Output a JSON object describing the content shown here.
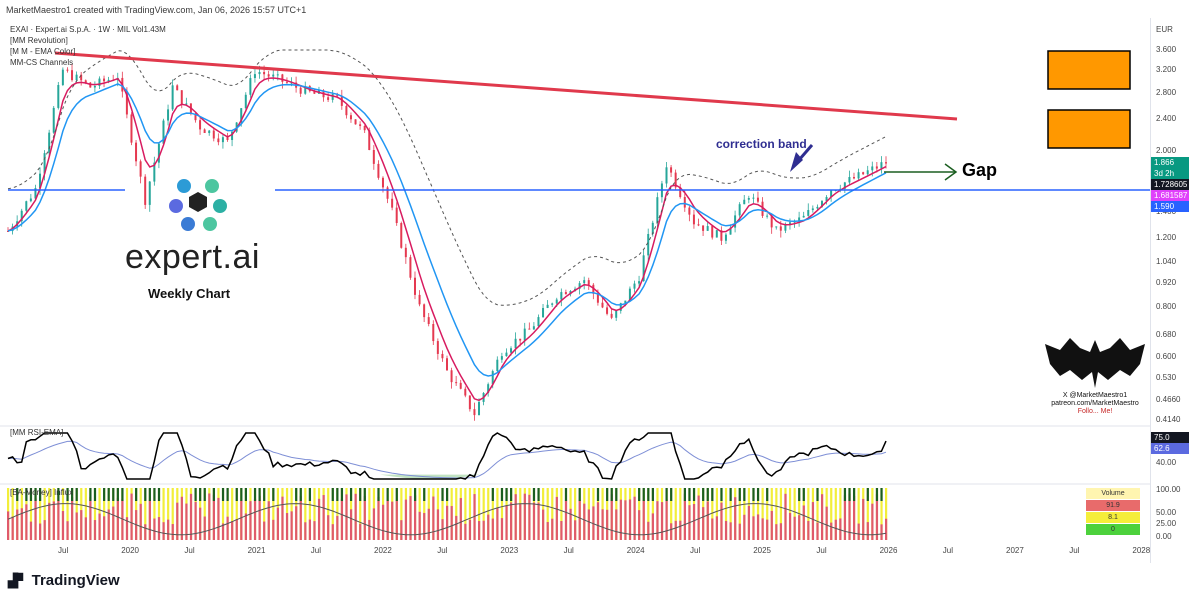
{
  "header": "MarketMaestro1 created with TradingView.com, Jan 06, 2026 15:57 UTC+1",
  "legend": {
    "symbol_line": "EXAI · Expert.ai S.p.A. · 1W · MIL  Vol",
    "volume_value": "1.43M",
    "indicators": [
      "[MM Revolution]",
      "[M M - EMA Color]",
      "MM-CS Channels"
    ]
  },
  "logo": {
    "text": "expert.ai",
    "caption": "Weekly Chart"
  },
  "annotations": {
    "gap": "Gap",
    "correction": "correction band"
  },
  "currency": "EUR",
  "colors": {
    "resistance": "#e0394c",
    "support": "#2962ff",
    "ema_blue": "#2196f3",
    "ema_red": "#d81b60",
    "orange_box": "#ff9800",
    "rsi": "#000000",
    "rsi_ma": "#7e8fd6",
    "money_yellow": "#f2ee3a",
    "money_green": "#1b5e20",
    "money_red": "#e05a6b"
  },
  "chart_data": [
    {
      "type": "line",
      "title": "EXAI · Expert.ai S.p.A. · 1W · MIL",
      "yscale": "log",
      "ylim": [
        0.414,
        3.6
      ],
      "y_ticks": [
        "3.600",
        "3.200",
        "2.800",
        "2.400",
        "2.000",
        "1.600",
        "1.400",
        "1.200",
        "1.040",
        "0.920",
        "0.800",
        "0.680",
        "0.600",
        "0.530",
        "0.4660",
        "0.4140"
      ],
      "x_ticks": [
        "Jul",
        "2020",
        "Jul",
        "2021",
        "Jul",
        "2022",
        "Jul",
        "2023",
        "Jul",
        "2024",
        "Jul",
        "2025",
        "Jul",
        "2026",
        "Jul",
        "2027",
        "Jul",
        "2028"
      ],
      "x_dates": [
        "2019-01",
        "2019-04",
        "2019-07",
        "2019-10",
        "2020-01",
        "2020-03",
        "2020-06",
        "2020-09",
        "2020-12",
        "2021-02",
        "2021-04",
        "2021-07",
        "2021-10",
        "2022-01",
        "2022-04",
        "2022-06",
        "2022-09",
        "2022-10",
        "2022-12",
        "2023-03",
        "2023-06",
        "2023-09",
        "2023-12",
        "2024-02",
        "2024-04",
        "2024-06",
        "2024-09",
        "2024-12",
        "2025-03",
        "2025-06",
        "2025-09",
        "2025-11",
        "2026-01"
      ],
      "close": [
        1.25,
        1.6,
        3.2,
        2.9,
        3.1,
        1.5,
        2.9,
        2.3,
        2.1,
        3.2,
        3.0,
        2.8,
        2.7,
        2.2,
        1.4,
        0.8,
        0.55,
        0.43,
        0.62,
        0.7,
        0.86,
        0.94,
        0.74,
        0.96,
        1.85,
        1.32,
        1.2,
        1.55,
        1.25,
        1.35,
        1.6,
        1.72,
        1.866
      ],
      "price_labels": [
        {
          "text": "1.866",
          "color": "#089981"
        },
        {
          "text": "3d 2h",
          "color": "#089981"
        },
        {
          "text": "1.728605",
          "color": "#131722"
        },
        {
          "text": "1.681587",
          "color": "#e040fb"
        },
        {
          "text": "1.590",
          "color": "#2962ff"
        }
      ],
      "levels": {
        "horizontal_support": 1.728605,
        "resistance_start": 3.5,
        "resistance_end": 2.45
      }
    },
    {
      "type": "line",
      "title": "[MM RSI-EMA]",
      "ylim": [
        20,
        90
      ],
      "values_label": [
        "75.0",
        "62.6"
      ],
      "y_ticks": [
        "40.00"
      ]
    },
    {
      "type": "bar",
      "title": "[BA-Money] Influx",
      "ylim": [
        0,
        100
      ],
      "y_ticks": [
        "100.00",
        "50.00",
        "25.00",
        "0.00"
      ],
      "table": [
        {
          "label": "Volume",
          "value": ""
        },
        {
          "label": "91.9",
          "value": "red"
        },
        {
          "label": "8.1",
          "value": "yellow"
        },
        {
          "label": "0",
          "value": "green"
        }
      ]
    }
  ],
  "credit": {
    "handle": "X @MarketMaestro1",
    "link": "patreon.com/MarketMaestro",
    "follow": "Follo... Me!"
  },
  "footer": "TradingView"
}
